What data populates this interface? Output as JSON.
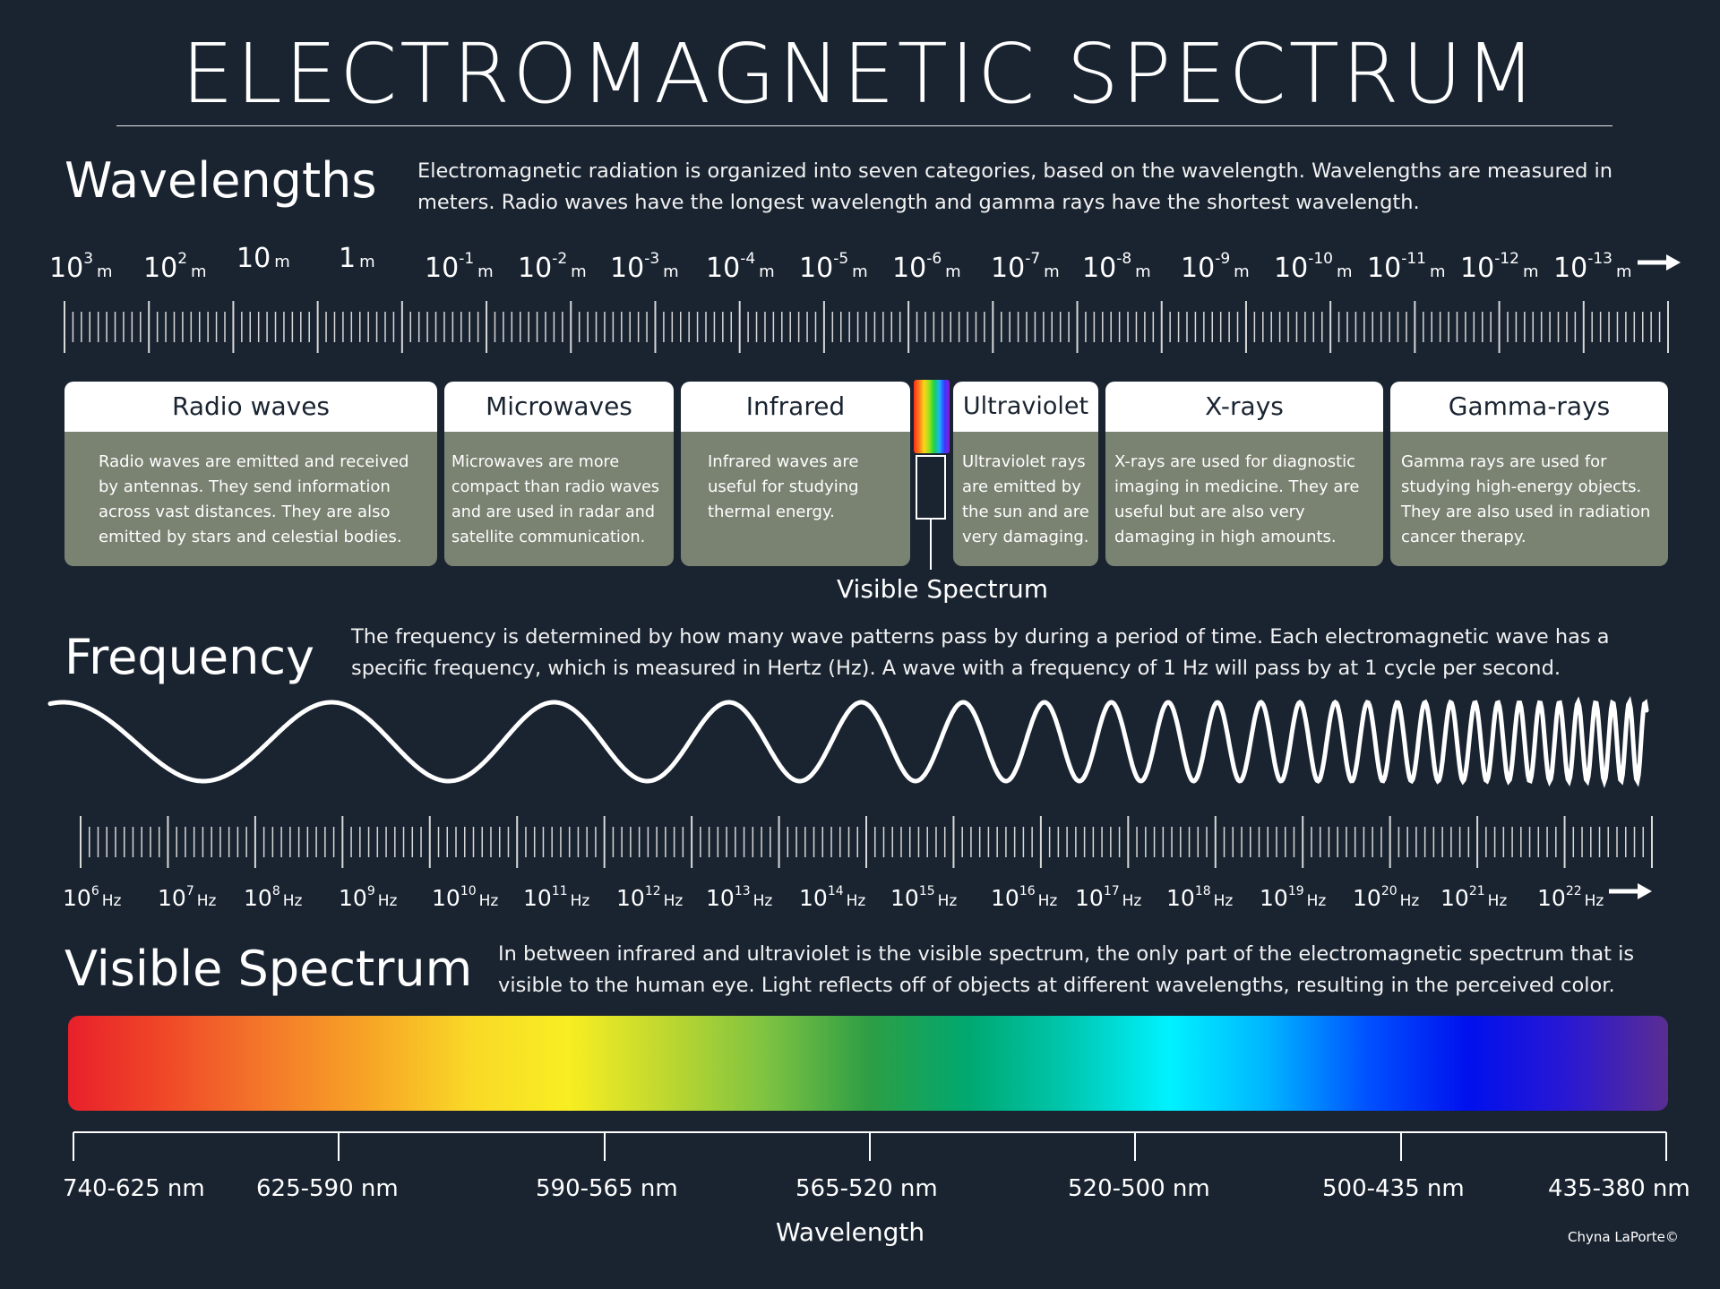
{
  "title": "ELECTROMAGNETIC SPECTRUM",
  "wavelengths": {
    "heading": "Wavelengths",
    "description": "Electromagnetic radiation is organized into seven categories,  based on the wavelength. Wavelengths are measured in meters. Radio waves have the longest wavelength and gamma rays have the shortest wavelength.",
    "labels": [
      {
        "base": "10",
        "exp": "3",
        "unit": "m"
      },
      {
        "base": "10",
        "exp": "2",
        "unit": "m"
      },
      {
        "base": "10",
        "exp": "",
        "unit": "m"
      },
      {
        "base": "1",
        "exp": "",
        "unit": "m"
      },
      {
        "base": "10",
        "exp": "-1",
        "unit": "m"
      },
      {
        "base": "10",
        "exp": "-2",
        "unit": "m"
      },
      {
        "base": "10",
        "exp": "-3",
        "unit": "m"
      },
      {
        "base": "10",
        "exp": "-4",
        "unit": "m"
      },
      {
        "base": "10",
        "exp": "-5",
        "unit": "m"
      },
      {
        "base": "10",
        "exp": "-6",
        "unit": "m"
      },
      {
        "base": "10",
        "exp": "-7",
        "unit": "m"
      },
      {
        "base": "10",
        "exp": "-8",
        "unit": "m"
      },
      {
        "base": "10",
        "exp": "-9",
        "unit": "m"
      },
      {
        "base": "10",
        "exp": "-10",
        "unit": "m"
      },
      {
        "base": "10",
        "exp": "-11",
        "unit": "m"
      },
      {
        "base": "10",
        "exp": "-12",
        "unit": "m"
      },
      {
        "base": "10",
        "exp": "-13",
        "unit": "m"
      }
    ]
  },
  "bands": [
    {
      "name": "Radio waves",
      "description": "Radio waves are emitted and received by antennas. They send information across vast distances.  They are also emitted by stars and celestial bodies."
    },
    {
      "name": "Microwaves",
      "description": "Microwaves are more compact than radio waves and are used in radar and satellite communication."
    },
    {
      "name": "Infrared",
      "description": "Infrared waves are useful for studying thermal energy."
    },
    {
      "name": "Ultraviolet",
      "description": "Ultraviolet rays are emitted by the sun and are very damaging."
    },
    {
      "name": "X-rays",
      "description": "X-rays are used for diagnostic imaging in medicine. They are useful but are also very damaging in high amounts."
    },
    {
      "name": "Gamma-rays",
      "description": "Gamma rays are used for studying high-energy objects. They are also used in radiation cancer therapy."
    }
  ],
  "visible_spectrum_callout": "Visible Spectrum",
  "frequency": {
    "heading": "Frequency",
    "description": "The frequency is determined by how many wave patterns pass by during a period of time. Each electromagnetic wave has a specific frequency, which is measured in Hertz (Hz). A wave with a frequency of 1 Hz will pass by at 1 cycle per second.",
    "labels": [
      {
        "base": "10",
        "exp": "6",
        "unit": "Hz"
      },
      {
        "base": "10",
        "exp": "7",
        "unit": "Hz"
      },
      {
        "base": "10",
        "exp": "8",
        "unit": "Hz"
      },
      {
        "base": "10",
        "exp": "9",
        "unit": "Hz"
      },
      {
        "base": "10",
        "exp": "10",
        "unit": "Hz"
      },
      {
        "base": "10",
        "exp": "11",
        "unit": "Hz"
      },
      {
        "base": "10",
        "exp": "12",
        "unit": "Hz"
      },
      {
        "base": "10",
        "exp": "13",
        "unit": "Hz"
      },
      {
        "base": "10",
        "exp": "14",
        "unit": "Hz"
      },
      {
        "base": "10",
        "exp": "15",
        "unit": "Hz"
      },
      {
        "base": "10",
        "exp": "16",
        "unit": "Hz"
      },
      {
        "base": "10",
        "exp": "17",
        "unit": "Hz"
      },
      {
        "base": "10",
        "exp": "18",
        "unit": "Hz"
      },
      {
        "base": "10",
        "exp": "19",
        "unit": "Hz"
      },
      {
        "base": "10",
        "exp": "20",
        "unit": "Hz"
      },
      {
        "base": "10",
        "exp": "21",
        "unit": "Hz"
      },
      {
        "base": "10",
        "exp": "22",
        "unit": "Hz"
      }
    ]
  },
  "visible": {
    "heading": "Visible Spectrum",
    "description": "In between infrared and ultraviolet is the visible spectrum, the only part of the electromagnetic spectrum that is visible to the human eye. Light reflects off of objects at different wavelengths, resulting in the perceived color.",
    "gradient_colors": [
      "#e8202a",
      "#f04a28",
      "#f4792a",
      "#f7a526",
      "#f9d827",
      "#f8ee22",
      "#bdd730",
      "#7cc242",
      "#2e9e44",
      "#00a870",
      "#00c7b0",
      "#00f2ff",
      "#00b4ff",
      "#0050ff",
      "#0010ee",
      "#2a18d2",
      "#5b2d92"
    ],
    "ranges": [
      "740-625 nm",
      "625-590 nm",
      "590-565 nm",
      "565-520 nm",
      "520-500 nm",
      "500-435 nm",
      "435-380 nm"
    ],
    "axis_label": "Wavelength"
  },
  "credit": "Chyna LaPorte©"
}
